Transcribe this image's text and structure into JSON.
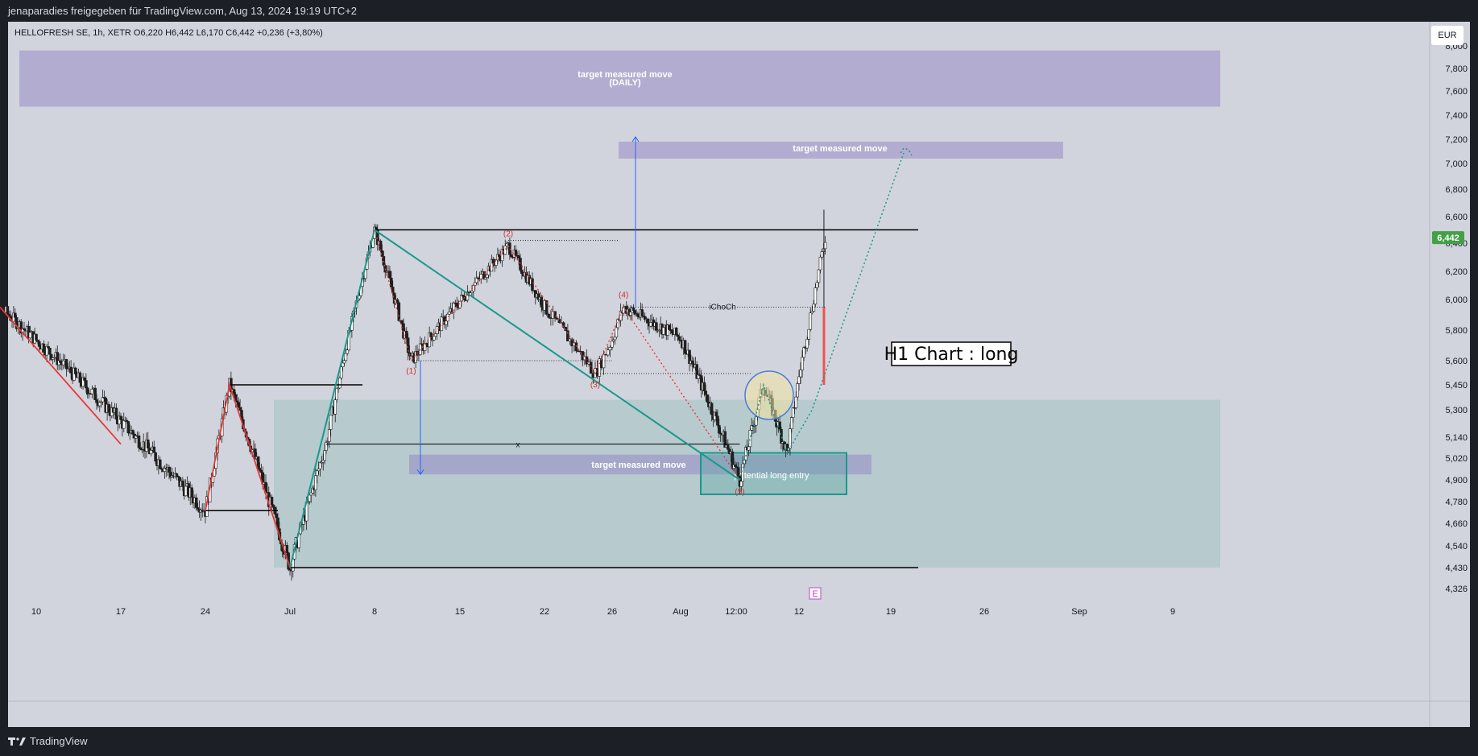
{
  "header": {
    "published_by": "jenaparadies freigegeben für TradingView.com, Aug 13, 2024 19:19 UTC+2"
  },
  "symbol": {
    "info": "HELLOFRESH SE, 1h, XETR  O6,220  H6,442  L6,170  C6,442  +0,236 (+3,80%)"
  },
  "currency": "EUR",
  "last_price_label": "6,442",
  "colors": {
    "background": "#d1d4dc",
    "bull": "#26a69a",
    "bear": "#ef5350",
    "zone_purple": "#8e7cc3",
    "zone_teal": "#86b7b5",
    "price_badge": "#43a047"
  },
  "footer": {
    "brand": "TradingView",
    "logo_icon": "tradingview-logo-icon"
  },
  "chart_data": {
    "type": "candlestick",
    "title": "",
    "xlabel": "",
    "ylabel": "",
    "y_axis_position": "right",
    "x_tick_labels": [
      "10",
      "17",
      "24",
      "Jul",
      "8",
      "15",
      "22",
      "26",
      "Aug",
      "12:00",
      "12",
      "19",
      "26",
      "Sep",
      "9"
    ],
    "y_tick_labels": [
      "8,000",
      "7,800",
      "7,600",
      "7,400",
      "7,200",
      "7,000",
      "6,800",
      "6,600",
      "6,400",
      "6,200",
      "6,000",
      "5,800",
      "5,600",
      "5,450",
      "5,300",
      "5,140",
      "5,020",
      "4,900",
      "4,780",
      "4,660",
      "4,540",
      "4,430",
      "4,326"
    ],
    "price_path_keypoints": [
      {
        "t": "Jun 05",
        "price": 5.9
      },
      {
        "t": "Jun 07",
        "price": 5.95
      },
      {
        "t": "Jun 24",
        "price": 4.73
      },
      {
        "t": "Jun 26",
        "price": 5.45
      },
      {
        "t": "Jul 01",
        "price": 4.43
      },
      {
        "t": "Jul 04",
        "price": 5.1
      },
      {
        "t": "Jul 08",
        "price": 6.5
      },
      {
        "t": "Jul 11",
        "price": 5.6
      },
      {
        "t": "Jul 19",
        "price": 6.38
      },
      {
        "t": "Jul 25",
        "price": 5.52
      },
      {
        "t": "Jul 27",
        "price": 5.95
      },
      {
        "t": "Aug 01",
        "price": 5.75
      },
      {
        "t": "Aug 06",
        "price": 4.9
      },
      {
        "t": "Aug 08",
        "price": 5.45
      },
      {
        "t": "Aug 10",
        "price": 5.05
      },
      {
        "t": "Aug 12",
        "price": 5.95
      },
      {
        "t": "Aug 13",
        "price": 6.442
      }
    ],
    "annotations": {
      "zone_daily": "target measured move\n(DAILY)",
      "zone_upper": "target measured move",
      "zone_lower": "target measured move",
      "entry_box": "potential long entry",
      "choch": "iChoCh",
      "x_mark": "x",
      "wave_labels": [
        "(1)",
        "(2)",
        "(3)",
        "(4)",
        "(5)"
      ],
      "chart_label": "H1 Chart : long",
      "event_marker": "E"
    },
    "horizontal_levels": [
      6.5,
      5.45,
      5.1,
      4.73,
      4.43,
      6.42,
      5.6,
      5.52,
      5.95
    ]
  }
}
